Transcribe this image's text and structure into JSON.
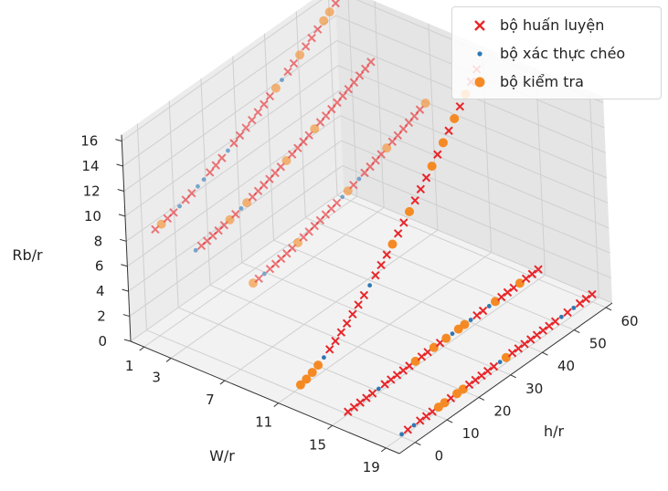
{
  "chart_data": {
    "type": "scatter",
    "projection": "3d",
    "xlabel": "W/r",
    "ylabel": "h/r",
    "zlabel": "Rb/r",
    "xticks": [
      "1",
      "3",
      "7",
      "11",
      "15",
      "19"
    ],
    "yticks": [
      "0",
      "10",
      "20",
      "30",
      "40",
      "50",
      "60"
    ],
    "zticks": [
      "0",
      "2",
      "4",
      "6",
      "8",
      "10",
      "12",
      "14",
      "16"
    ],
    "xlim": [
      0,
      20
    ],
    "ylim": [
      -5,
      62
    ],
    "zlim": [
      0,
      16.5
    ],
    "grid": true,
    "legend_position": "top-right",
    "series": [
      {
        "name": "bộ huấn luyện",
        "marker": "x",
        "color": "#e8262a"
      },
      {
        "name": "bộ xác thực chéo",
        "marker": "small-dot",
        "color": "#2f77b4"
      },
      {
        "name": "bộ kiểm tra",
        "marker": "circle",
        "color": "#f58a25"
      }
    ],
    "curves": [
      {
        "w": 1,
        "h_range": [
          0,
          60
        ],
        "rb_range": [
          8.5,
          16.5
        ]
      },
      {
        "w": 3,
        "h_range": [
          4,
          60
        ],
        "rb_range": [
          7.0,
          12.0
        ]
      },
      {
        "w": 7,
        "h_range": [
          5,
          60
        ],
        "rb_range": [
          6.0,
          10.5
        ]
      },
      {
        "w": 11,
        "h_range": [
          2,
          60
        ],
        "rb_range": [
          0.2,
          15.0
        ]
      },
      {
        "w": 15,
        "h_range": [
          0,
          60
        ],
        "rb_range": [
          0.2,
          0.8
        ]
      },
      {
        "w": 19,
        "h_range": [
          0,
          60
        ],
        "rb_range": [
          0.2,
          0.6
        ]
      }
    ]
  }
}
